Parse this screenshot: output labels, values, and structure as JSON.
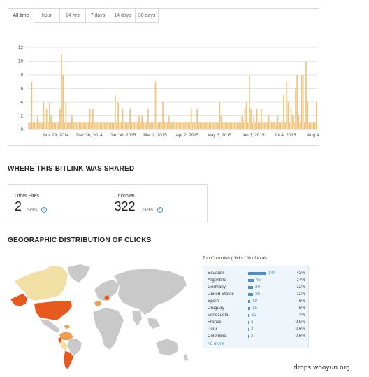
{
  "time_tabs": [
    "All time",
    "hour",
    "24 hrs",
    "7 days",
    "14 days",
    "30 days"
  ],
  "selected_tab": "All time",
  "chart_data": {
    "type": "bar",
    "color": "#f2c47a",
    "x_tick_labels": [
      "Nov 29, 2014",
      "Dec 30, 2014",
      "Jan 30, 2015",
      "Mar 2, 2015",
      "Apr 2, 2015",
      "May 3, 2015",
      "Jun 3, 2015",
      "Jul 4, 2015",
      "Aug 4"
    ],
    "y_ticks": [
      0,
      2,
      4,
      6,
      8,
      10,
      12
    ],
    "ylim": [
      0,
      12
    ],
    "grid": true,
    "values": [
      1,
      1,
      7,
      1,
      1,
      1,
      2,
      1,
      1,
      1,
      4,
      1,
      3,
      1,
      4,
      2,
      1,
      1,
      1,
      1,
      1,
      3,
      11,
      8,
      1,
      4,
      1,
      1,
      1,
      2,
      1,
      1,
      1,
      1,
      1,
      1,
      1,
      1,
      1,
      1,
      1,
      3,
      1,
      3,
      1,
      1,
      1,
      1,
      1,
      1,
      1,
      1,
      1,
      1,
      1,
      1,
      1,
      1,
      5,
      1,
      4,
      1,
      1,
      3,
      1,
      1,
      1,
      1,
      3,
      1,
      1,
      1,
      1,
      1,
      2,
      1,
      2,
      1,
      1,
      1,
      3,
      1,
      1,
      1,
      1,
      7,
      1,
      1,
      1,
      1,
      4,
      1,
      1,
      1,
      2,
      1,
      1,
      1,
      1,
      1,
      1,
      1,
      1,
      1,
      1,
      1,
      1,
      1,
      1,
      3,
      1,
      1,
      1,
      3,
      1,
      1,
      1,
      1,
      1,
      1,
      1,
      1,
      1,
      1,
      1,
      1,
      1,
      1,
      4,
      2,
      1,
      1,
      1,
      1,
      1,
      1,
      1,
      1,
      1,
      1,
      1,
      1,
      1,
      2,
      1,
      3,
      4,
      1,
      8,
      3,
      1,
      2,
      1,
      3,
      1,
      1,
      3,
      1,
      1,
      1,
      1,
      2,
      1,
      1,
      1,
      1,
      1,
      2,
      1,
      1,
      1,
      5,
      1,
      7,
      4,
      1,
      3,
      2,
      1,
      6,
      8,
      2,
      1,
      8,
      8,
      1,
      10,
      4,
      1,
      1,
      1,
      1,
      1,
      4
    ]
  },
  "shared_section": {
    "title": "WHERE THIS BITLINK WAS SHARED",
    "cards": [
      {
        "label": "Other Sites",
        "value": "2",
        "unit": "clicks"
      },
      {
        "label": "Unknown",
        "value": "322",
        "unit": "clicks"
      }
    ]
  },
  "geo_section": {
    "title": "GEOGRAPHIC DISTRIBUTION OF CLICKS",
    "colors": {
      "high": "#e65a1f",
      "mid": "#ef9d55",
      "low": "#f2dfa4",
      "none": "#c9c9c9"
    },
    "top_countries_title": "Top Countries (clicks / % of total)",
    "countries": [
      {
        "name": "Ecuador",
        "clicks": 140,
        "pct": "43%"
      },
      {
        "name": "Argentina",
        "clicks": 45,
        "pct": "14%"
      },
      {
        "name": "Germany",
        "clicks": 39,
        "pct": "12%"
      },
      {
        "name": "United States",
        "clicks": 38,
        "pct": "12%"
      },
      {
        "name": "Spain",
        "clicks": 18,
        "pct": "6%"
      },
      {
        "name": "Uruguay",
        "clicks": 15,
        "pct": "5%"
      },
      {
        "name": "Venezuela",
        "clicks": 12,
        "pct": "4%"
      },
      {
        "name": "France",
        "clicks": 3,
        "pct": "0.9%"
      },
      {
        "name": "Peru",
        "clicks": 2,
        "pct": "0.6%"
      },
      {
        "name": "Colombia",
        "clicks": 2,
        "pct": "0.6%"
      }
    ],
    "more_link": "+6 more"
  },
  "watermark": "drops.wooyun.org"
}
